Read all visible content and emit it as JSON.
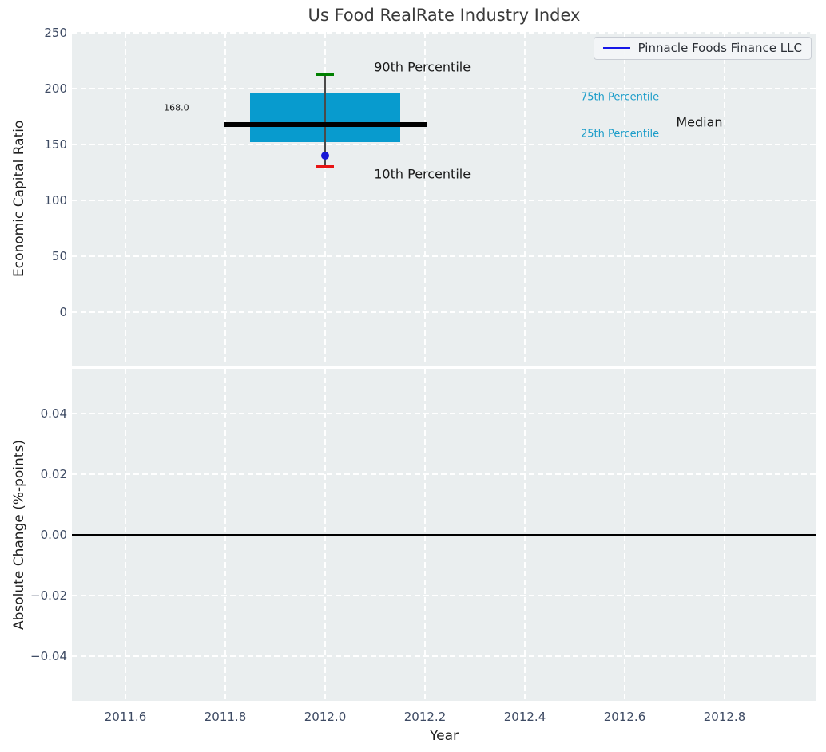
{
  "title": "Us Food RealRate Industry Index",
  "legend": {
    "label": "Pinnacle Foods Finance LLC",
    "line_color": "#1717e8"
  },
  "xlabel": "Year",
  "chart_data": [
    {
      "type": "box",
      "subplot": "top",
      "title": "Us Food RealRate Industry Index",
      "ylabel": "Economic Capital Ratio",
      "xlabel": "Year",
      "series_name": "Pinnacle Foods Finance LLC",
      "x": 2012.0,
      "percentiles": {
        "p90": 213,
        "p75": 196,
        "median": 168.0,
        "p25": 152,
        "p10": 130
      },
      "company_value": 140,
      "median_value_label": "168.0",
      "xlim": [
        2011.4928,
        2012.984
      ],
      "ylim": [
        -47.9,
        250.7
      ],
      "xticks": {
        "values": [
          2011.6,
          2011.8,
          2012.0,
          2012.2,
          2012.4,
          2012.6,
          2012.8
        ],
        "labels": [
          "2011.6",
          "2011.8",
          "2012.0",
          "2012.2",
          "2012.4",
          "2012.6",
          "2012.8"
        ],
        "show_labels": false
      },
      "yticks": {
        "values": [
          0,
          50,
          100,
          150,
          200,
          250
        ],
        "labels": [
          "0",
          "50",
          "100",
          "150",
          "200",
          "250"
        ]
      },
      "grid": true,
      "legend_position": "upper right",
      "geometry": {
        "box_halfwidth": 0.15,
        "median_halfwidth": 0.203,
        "cap_halfwidth": 0.018
      },
      "colors": {
        "box_fill": "#089bce",
        "median_line": "#000000",
        "whisker": "#4a4a4a",
        "p90_cap": "#008000",
        "p10_cap": "#e81414",
        "company_marker": "#1717d6",
        "percentile_text": "#1c9dc9",
        "axes_bg": "#eaeeef",
        "grid": "#ffffff"
      },
      "annotations": [
        {
          "name": "p90-label",
          "text": "90th Percentile",
          "x": 2012.098,
          "y": 219.4,
          "cls": "ann-lg",
          "color": "#1a1a1a"
        },
        {
          "name": "p10-label",
          "text": "10th Percentile",
          "x": 2012.098,
          "y": 123.7,
          "cls": "ann-lg",
          "color": "#1a1a1a"
        },
        {
          "name": "p75-label",
          "text": "75th Percentile",
          "x": 2012.512,
          "y": 192.3,
          "cls": "ann-sm",
          "color": "#1c9dc9"
        },
        {
          "name": "p25-label",
          "text": "25th Percentile",
          "x": 2012.512,
          "y": 159.0,
          "cls": "ann-sm",
          "color": "#1c9dc9"
        },
        {
          "name": "median-label",
          "text": "Median",
          "x": 2012.703,
          "y": 170.1,
          "cls": "ann-lg",
          "color": "#1a1a1a"
        },
        {
          "name": "median-value-label",
          "text": "168.0",
          "x": 2011.677,
          "y": 183.0,
          "cls": "ann-xs",
          "color": "#1a1a1a"
        }
      ]
    },
    {
      "type": "line",
      "subplot": "bottom",
      "ylabel": "Absolute Change (%-points)",
      "xlabel": "Year",
      "series": [
        {
          "name": "Pinnacle Foods Finance LLC",
          "x": [],
          "values": []
        }
      ],
      "zero_line": 0.0,
      "zero_line_color": "#000000",
      "xlim": [
        2011.4928,
        2012.984
      ],
      "ylim": [
        -0.0547,
        0.0547
      ],
      "xticks": {
        "values": [
          2011.6,
          2011.8,
          2012.0,
          2012.2,
          2012.4,
          2012.6,
          2012.8
        ],
        "labels": [
          "2011.6",
          "2011.8",
          "2012.0",
          "2012.2",
          "2012.4",
          "2012.6",
          "2012.8"
        ],
        "show_labels": true
      },
      "yticks": {
        "values": [
          0.04,
          0.02,
          0.0,
          -0.02,
          -0.04
        ],
        "labels": [
          "0.04",
          "0.02",
          "0.00",
          "−0.02",
          "−0.04"
        ]
      },
      "grid": true
    }
  ]
}
